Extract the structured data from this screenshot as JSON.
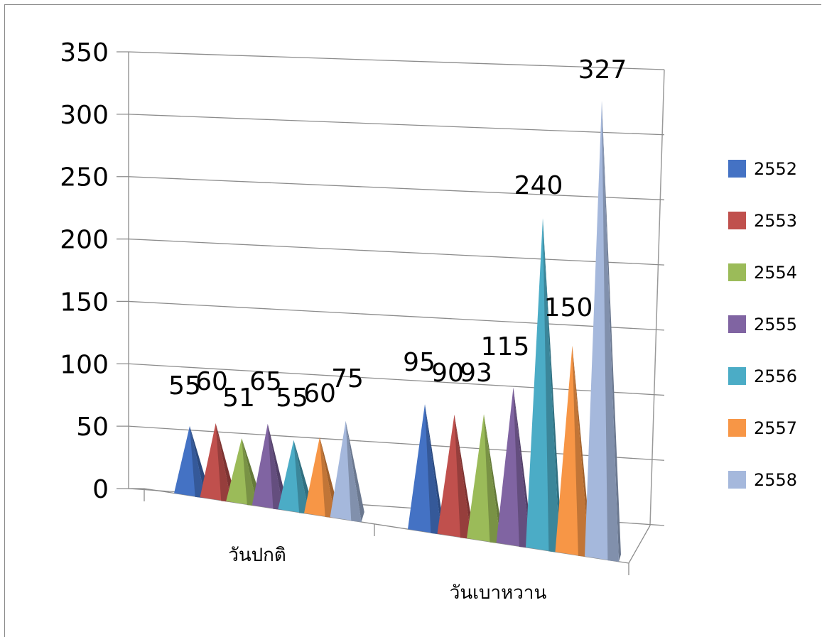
{
  "chart_data": {
    "type": "bar",
    "style": "3d-pyramid",
    "categories": [
      "วันปกติ",
      "วันเบาหวาน"
    ],
    "series": [
      {
        "name": "2552",
        "color": "#4472c4",
        "values": [
          55,
          95
        ]
      },
      {
        "name": "2553",
        "color": "#c0504d",
        "values": [
          60,
          90
        ]
      },
      {
        "name": "2554",
        "color": "#9bbb59",
        "values": [
          51,
          93
        ]
      },
      {
        "name": "2555",
        "color": "#8064a2",
        "values": [
          65,
          115
        ]
      },
      {
        "name": "2556",
        "color": "#4bacc6",
        "values": [
          55,
          240
        ]
      },
      {
        "name": "2557",
        "color": "#f79646",
        "values": [
          60,
          150
        ]
      },
      {
        "name": "2558",
        "color": "#a5b8dc",
        "values": [
          75,
          327
        ]
      }
    ],
    "y_ticks": [
      "0",
      "50",
      "100",
      "150",
      "200",
      "250",
      "300",
      "350"
    ],
    "ylim": [
      0,
      350
    ],
    "title": "",
    "xlabel": "",
    "ylabel": "",
    "grid": true,
    "legend_position": "right"
  }
}
